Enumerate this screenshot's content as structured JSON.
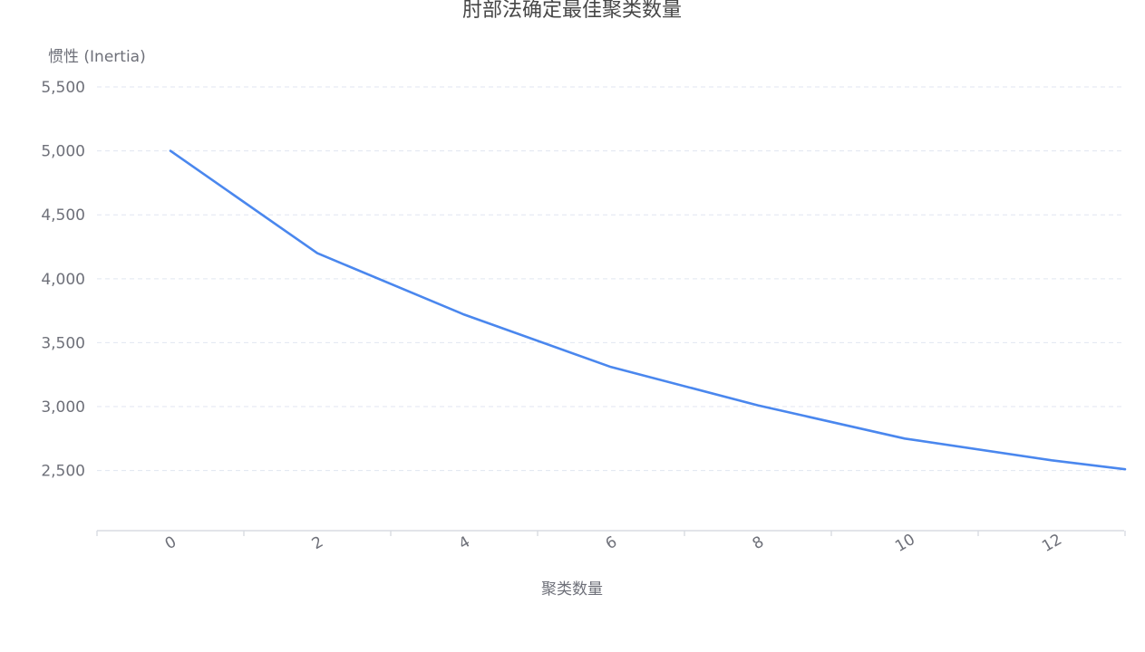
{
  "chart_data": {
    "type": "line",
    "title": "肘部法确定最佳聚类数量",
    "xlabel": "聚类数量",
    "ylabel": "惯性 (Inertia)",
    "x_tick_labels": [
      "0",
      "2",
      "4",
      "6",
      "8",
      "10",
      "12"
    ],
    "y_tick_labels": [
      "2,500",
      "3,000",
      "3,500",
      "4,000",
      "4,500",
      "5,000",
      "5,500"
    ],
    "y_ticks": [
      2500,
      3000,
      3500,
      4000,
      4500,
      5000,
      5500
    ],
    "ylim": [
      2030,
      5500
    ],
    "grid": true,
    "series": [
      {
        "color": "#4a87ee",
        "x": [
          0,
          2,
          4,
          6,
          8,
          10,
          12,
          13
        ],
        "y": [
          5000,
          4200,
          3720,
          3310,
          3010,
          2750,
          2580,
          2510
        ]
      }
    ]
  }
}
